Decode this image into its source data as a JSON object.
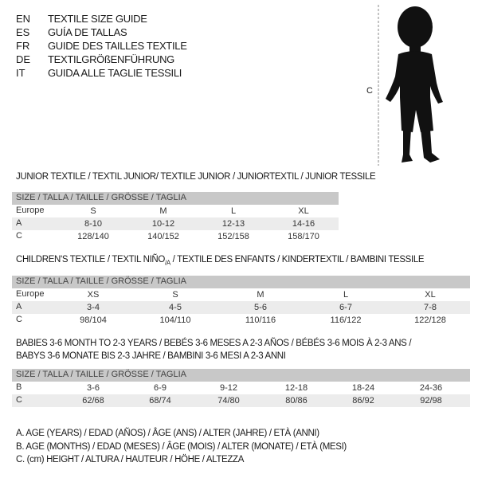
{
  "header": {
    "languages": [
      {
        "code": "EN",
        "title": "TEXTILE SIZE GUIDE"
      },
      {
        "code": "ES",
        "title": "GUÍA DE TALLAS"
      },
      {
        "code": "FR",
        "title": "GUIDE DES TAILLES TEXTILE"
      },
      {
        "code": "DE",
        "title": "TEXTILGRÖßENFÜHRUNG"
      },
      {
        "code": "IT",
        "title": "GUIDA ALLE TAGLIE TESSILI"
      }
    ],
    "figure_label": "C"
  },
  "junior": {
    "title": "JUNIOR TEXTILE / TEXTIL JUNIOR/ TEXTILE JUNIOR / JUNIORTEXTIL / JUNIOR TESSILE",
    "header": "SIZE / TALLA / TAILLE / GRÖSSE / TAGLIA",
    "rows": [
      {
        "label": "Europe",
        "values": [
          "S",
          "M",
          "L",
          "XL"
        ]
      },
      {
        "label": "A",
        "values": [
          "8-10",
          "10-12",
          "12-13",
          "14-16"
        ]
      },
      {
        "label": "C",
        "values": [
          "128/140",
          "140/152",
          "152/158",
          "158/170"
        ]
      }
    ]
  },
  "children": {
    "title_main": "CHILDREN'S TEXTILE / TEXTIL NIÑO",
    "title_sub": "/A",
    "title_rest": " / TEXTILE DES ENFANTS / KINDERTEXTIL / BAMBINI TESSILE",
    "header": "SIZE / TALLA / TAILLE / GRÖSSE / TAGLIA",
    "rows": [
      {
        "label": "Europe",
        "values": [
          "XS",
          "S",
          "M",
          "L",
          "XL"
        ]
      },
      {
        "label": "A",
        "values": [
          "3-4",
          "4-5",
          "5-6",
          "6-7",
          "7-8"
        ]
      },
      {
        "label": "C",
        "values": [
          "98/104",
          "104/110",
          "110/116",
          "116/122",
          "122/128"
        ]
      }
    ]
  },
  "babies": {
    "title_line1": "BABIES 3-6 MONTH TO 2-3 YEARS / BEBÉS 3-6 MESES A 2-3 AÑOS / BÉBÉS 3-6 MOIS À 2-3 ANS /",
    "title_line2": "BABYS 3-6 MONATE BIS 2-3 JAHRE / BAMBINI 3-6 MESI A 2-3 ANNI",
    "header": "SIZE / TALLA / TAILLE / GRÖSSE / TAGLIA",
    "rows": [
      {
        "label": "B",
        "values": [
          "3-6",
          "6-9",
          "9-12",
          "12-18",
          "18-24",
          "24-36"
        ]
      },
      {
        "label": "C",
        "values": [
          "62/68",
          "68/74",
          "74/80",
          "80/86",
          "86/92",
          "92/98"
        ]
      }
    ]
  },
  "legend": [
    "A. AGE (YEARS) / EDAD (AÑOS) / ÂGE (ANS) / ALTER (JAHRE) / ETÀ (ANNI)",
    "B. AGE (MONTHS) / EDAD (MESES) / ÂGE (MOIS) / ALTER (MONATE) / ETÀ (MESI)",
    "C. (cm) HEIGHT / ALTURA / HAUTEUR / HÖHE / ALTEZZA"
  ]
}
